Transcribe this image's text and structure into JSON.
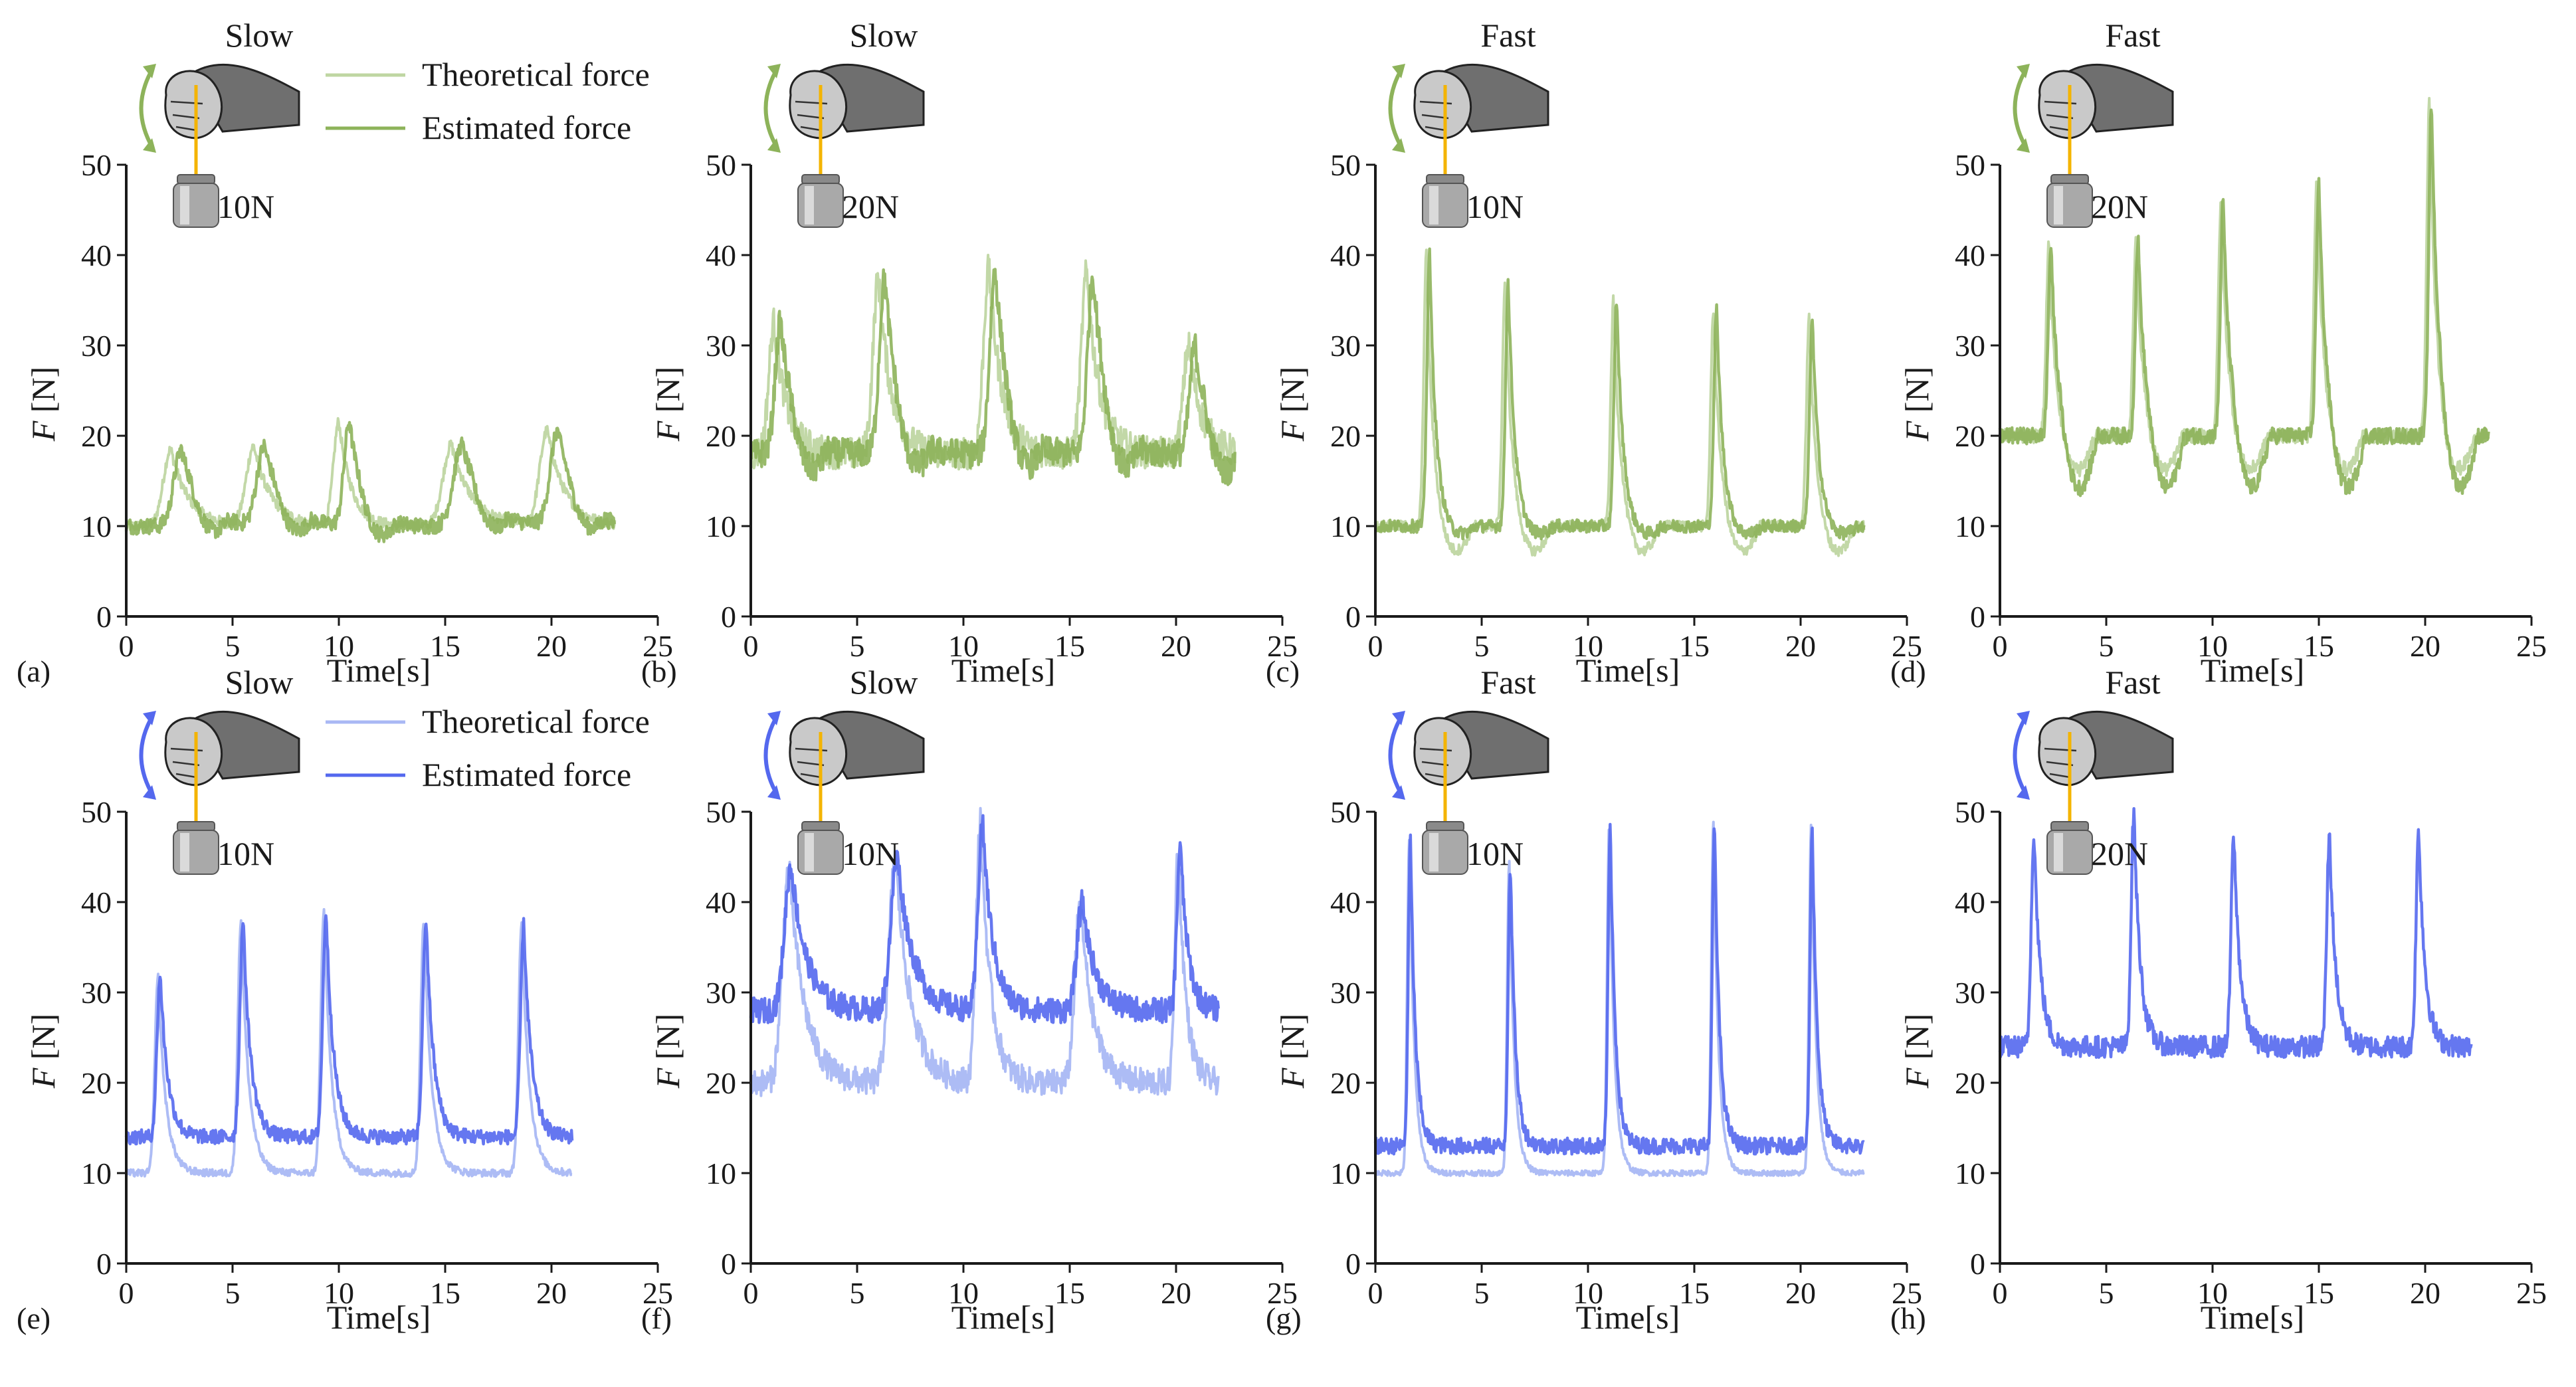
{
  "figure": {
    "x_label": "Time[s]",
    "y_label_italic": "F",
    "y_label_unit": "[N]",
    "legend_theoretical": "Theoretical force",
    "legend_estimated": "Estimated force"
  },
  "colors": {
    "green_theoretical": "#bfd6a2",
    "green_estimated": "#8db35a",
    "blue_theoretical": "#a9b8f4",
    "blue_estimated": "#5468ee",
    "axis": "#1a1a1a",
    "rope": "#f4b400",
    "hand_dark": "#6f6f6f",
    "hand_light": "#c9c9c9",
    "weight": "#a9a9a9"
  },
  "chart_data": [
    {
      "type": "line",
      "panel": "(a)",
      "speed": "Slow",
      "load": "10N",
      "color": "green",
      "show_legend": true,
      "xlabel": "Time[s]",
      "ylabel": "F [N]",
      "xlim": [
        0,
        25
      ],
      "ylim": [
        0,
        50
      ],
      "xticks": [
        0,
        5,
        10,
        15,
        20,
        25
      ],
      "yticks": [
        0,
        10,
        20,
        30,
        40,
        50
      ],
      "duration": 23,
      "base": 10,
      "peaks": [
        [
          2.1,
          18.5,
          0.7
        ],
        [
          6.0,
          18.8,
          0.7
        ],
        [
          10.0,
          21.5,
          0.5
        ],
        [
          15.3,
          19,
          0.8
        ],
        [
          19.8,
          20.5,
          0.7
        ]
      ],
      "series": [
        {
          "name": "Theoretical force",
          "shift": 0,
          "dip": 0,
          "noise": 0.6
        },
        {
          "name": "Estimated force",
          "shift": 0.5,
          "dip": 2,
          "noise": 0.9
        }
      ]
    },
    {
      "type": "line",
      "panel": "(b)",
      "speed": "Slow",
      "load": "20N",
      "color": "green",
      "show_legend": false,
      "xlabel": "Time[s]",
      "ylabel": "F [N]",
      "xlim": [
        0,
        25
      ],
      "ylim": [
        0,
        50
      ],
      "xticks": [
        0,
        5,
        10,
        15,
        20,
        25
      ],
      "yticks": [
        0,
        10,
        20,
        30,
        40,
        50
      ],
      "duration": 22.8,
      "base": 18,
      "peaks": [
        [
          1.1,
          32.5,
          0.5
        ],
        [
          6.0,
          37.5,
          0.5
        ],
        [
          11.2,
          38.5,
          0.5
        ],
        [
          15.8,
          38,
          0.5
        ],
        [
          20.6,
          30,
          0.5
        ]
      ],
      "series": [
        {
          "name": "Theoretical force",
          "shift": 0,
          "dip": 0,
          "noise": 1.8
        },
        {
          "name": "Estimated force",
          "shift": 0.3,
          "dip": 3,
          "noise": 1.6
        }
      ]
    },
    {
      "type": "line",
      "panel": "(c)",
      "speed": "Fast",
      "load": "10N",
      "color": "green",
      "show_legend": false,
      "xlabel": "Time[s]",
      "ylabel": "F [N]",
      "xlim": [
        0,
        25
      ],
      "ylim": [
        0,
        50
      ],
      "xticks": [
        0,
        5,
        10,
        15,
        20,
        25
      ],
      "yticks": [
        0,
        10,
        20,
        30,
        40,
        50
      ],
      "duration": 23,
      "base": 10,
      "peaks": [
        [
          2.4,
          40,
          0.25
        ],
        [
          6.1,
          37,
          0.25
        ],
        [
          11.2,
          35,
          0.25
        ],
        [
          15.9,
          34,
          0.25
        ],
        [
          20.4,
          33,
          0.25
        ]
      ],
      "series": [
        {
          "name": "Theoretical force",
          "shift": 0,
          "dip": 3,
          "noise": 0.6
        },
        {
          "name": "Estimated force",
          "shift": 0.15,
          "dip": 1,
          "noise": 0.7
        }
      ]
    },
    {
      "type": "line",
      "panel": "(d)",
      "speed": "Fast",
      "load": "20N",
      "color": "green",
      "show_legend": false,
      "xlabel": "Time[s]",
      "ylabel": "F [N]",
      "xlim": [
        0,
        25
      ],
      "ylim": [
        0,
        50
      ],
      "xticks": [
        0,
        5,
        10,
        15,
        20,
        25
      ],
      "yticks": [
        0,
        10,
        20,
        30,
        40,
        50
      ],
      "duration": 23,
      "base": 20,
      "peaks": [
        [
          2.3,
          41,
          0.25
        ],
        [
          6.4,
          42,
          0.25
        ],
        [
          10.4,
          46,
          0.25
        ],
        [
          14.9,
          48,
          0.25
        ],
        [
          20.2,
          57,
          0.25
        ]
      ],
      "series": [
        {
          "name": "Theoretical force",
          "shift": 0,
          "dip": 4,
          "noise": 0.8
        },
        {
          "name": "Estimated force",
          "shift": 0.1,
          "dip": 6,
          "noise": 0.9
        }
      ]
    },
    {
      "type": "line",
      "panel": "(e)",
      "speed": "Slow",
      "load": "10N",
      "color": "blue",
      "show_legend": true,
      "xlabel": "Time[s]",
      "ylabel": "F [N]",
      "xlim": [
        0,
        25
      ],
      "ylim": [
        0,
        50
      ],
      "xticks": [
        0,
        5,
        10,
        15,
        20,
        25
      ],
      "yticks": [
        0,
        10,
        20,
        30,
        40,
        50
      ],
      "duration": 21,
      "base": 10,
      "peaks": [
        [
          1.5,
          32,
          0.3
        ],
        [
          5.4,
          38,
          0.3
        ],
        [
          9.3,
          39,
          0.3
        ],
        [
          14.0,
          38,
          0.3
        ],
        [
          18.6,
          37.5,
          0.3
        ]
      ],
      "series": [
        {
          "name": "Theoretical force",
          "shift": 0,
          "dip": 0,
          "noise": 0.4,
          "offset": 0
        },
        {
          "name": "Estimated force",
          "shift": 0.1,
          "dip": 0,
          "noise": 0.8,
          "offset": 4
        }
      ]
    },
    {
      "type": "line",
      "panel": "(f)",
      "speed": "Slow",
      "load": "10N",
      "color": "blue",
      "show_legend": false,
      "xlabel": "Time[s]",
      "ylabel": "F [N]",
      "xlim": [
        0,
        25
      ],
      "ylim": [
        0,
        50
      ],
      "xticks": [
        0,
        5,
        10,
        15,
        20,
        25
      ],
      "yticks": [
        0,
        10,
        20,
        30,
        40,
        50
      ],
      "duration": 22,
      "base": 20,
      "peaks": [
        [
          1.8,
          44,
          0.6
        ],
        [
          6.8,
          45,
          0.6
        ],
        [
          10.8,
          49,
          0.4
        ],
        [
          15.5,
          40,
          0.5
        ],
        [
          20.1,
          46.5,
          0.3
        ]
      ],
      "series": [
        {
          "name": "Theoretical force",
          "shift": 0,
          "dip": 0,
          "noise": 1.5,
          "offset": 0
        },
        {
          "name": "Estimated force",
          "shift": 0.1,
          "dip": 0,
          "noise": 1.4,
          "offset": 8
        }
      ]
    },
    {
      "type": "line",
      "panel": "(g)",
      "speed": "Fast",
      "load": "10N",
      "color": "blue",
      "show_legend": false,
      "xlabel": "Time[s]",
      "ylabel": "F [N]",
      "xlim": [
        0,
        25
      ],
      "ylim": [
        0,
        50
      ],
      "xticks": [
        0,
        5,
        10,
        15,
        20,
        25
      ],
      "yticks": [
        0,
        10,
        20,
        30,
        40,
        50
      ],
      "duration": 23,
      "base": 10,
      "peaks": [
        [
          1.6,
          47,
          0.2
        ],
        [
          6.3,
          44.5,
          0.2
        ],
        [
          11.0,
          48.5,
          0.2
        ],
        [
          15.9,
          49,
          0.2
        ],
        [
          20.5,
          48.5,
          0.2
        ]
      ],
      "series": [
        {
          "name": "Theoretical force",
          "shift": 0,
          "dip": 0,
          "noise": 0.3,
          "offset": 0
        },
        {
          "name": "Estimated force",
          "shift": 0.05,
          "dip": 0,
          "noise": 0.9,
          "offset": 3
        }
      ]
    },
    {
      "type": "line",
      "panel": "(h)",
      "speed": "Fast",
      "load": "20N",
      "color": "blue",
      "show_legend": false,
      "xlabel": "Time[s]",
      "ylabel": "F [N]",
      "xlim": [
        0,
        25
      ],
      "ylim": [
        0,
        50
      ],
      "xticks": [
        0,
        5,
        10,
        15,
        20,
        25
      ],
      "yticks": [
        0,
        10,
        20,
        30,
        40,
        50
      ],
      "duration": 22.2,
      "base": 22,
      "peaks": [
        [
          1.6,
          48,
          0.25
        ],
        [
          6.3,
          50,
          0.25
        ],
        [
          11.0,
          47.5,
          0.25
        ],
        [
          15.5,
          47.5,
          0.25
        ],
        [
          19.7,
          48,
          0.25
        ]
      ],
      "series": [
        {
          "name": "Estimated force",
          "shift": 0,
          "dip": 0,
          "noise": 1.2,
          "offset": 2
        }
      ]
    }
  ]
}
